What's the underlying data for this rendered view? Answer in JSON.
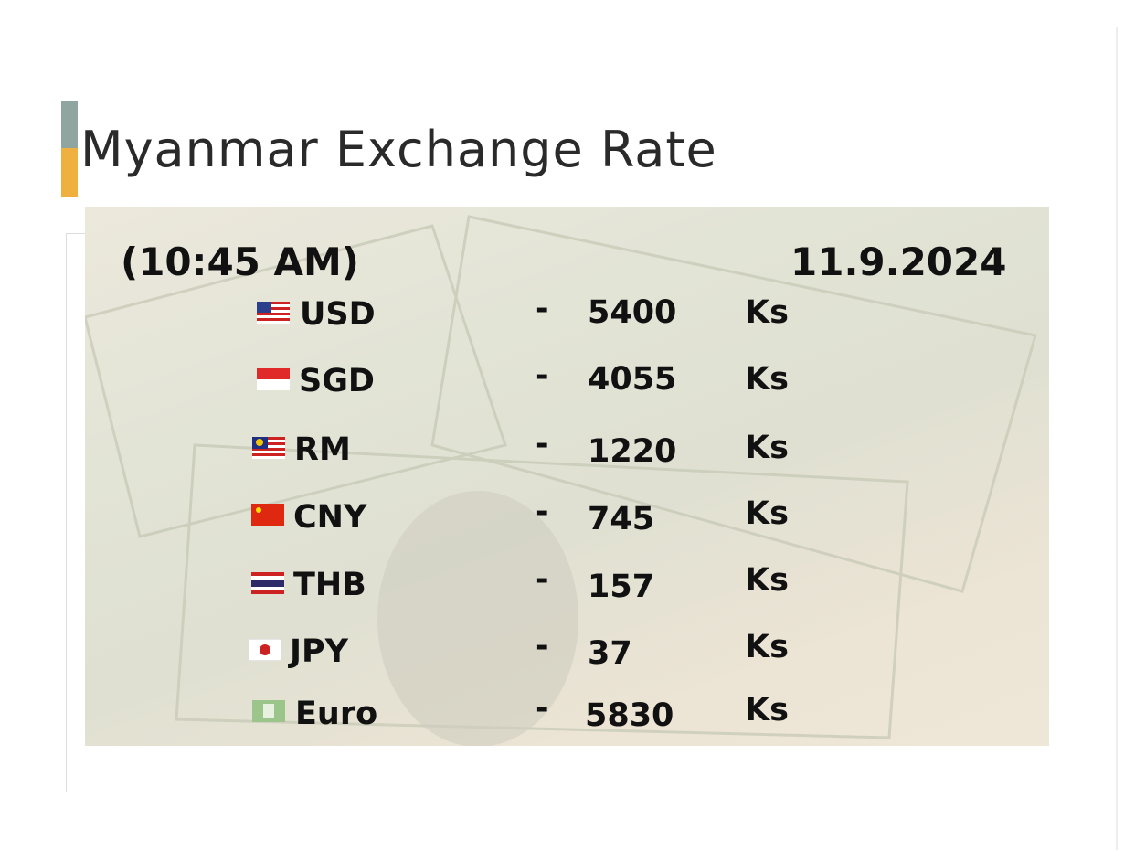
{
  "header": {
    "title": "Myanmar Exchange Rate",
    "time": "(10:45 AM)",
    "date": "11.9.2024"
  },
  "table": {
    "rows": [
      {
        "currency": "USD",
        "separator": "-",
        "rate": 5400,
        "unit": "Ks"
      },
      {
        "currency": "SGD",
        "separator": "-",
        "rate": 4055,
        "unit": "Ks"
      },
      {
        "currency": "RM",
        "separator": "-",
        "rate": 1220,
        "unit": "Ks"
      },
      {
        "currency": "CNY",
        "separator": "-",
        "rate": 745,
        "unit": "Ks"
      },
      {
        "currency": "THB",
        "separator": "-",
        "rate": 157,
        "unit": "Ks"
      },
      {
        "currency": "JPY",
        "separator": "-",
        "rate": 37,
        "unit": "Ks"
      },
      {
        "currency": "Euro",
        "separator": "-",
        "rate": 5830,
        "unit": "Ks"
      }
    ]
  }
}
